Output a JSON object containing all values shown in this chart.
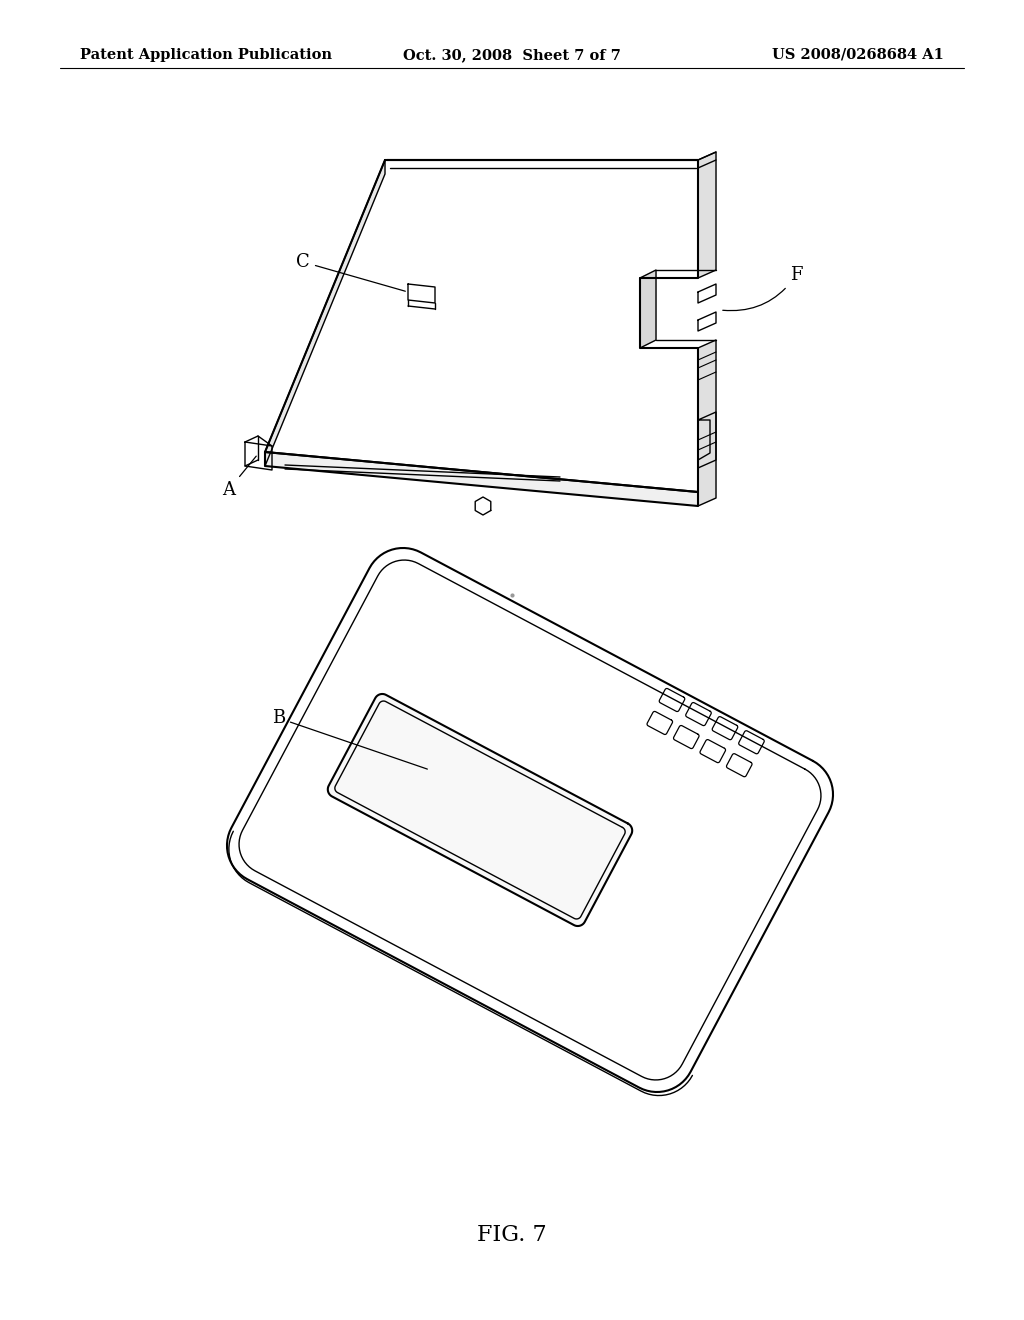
{
  "background_color": "#ffffff",
  "header_left": "Patent Application Publication",
  "header_mid": "Oct. 30, 2008  Sheet 7 of 7",
  "header_right": "US 2008/0268684 A1",
  "figure_label": "FIG. 7",
  "line_color": "#000000",
  "header_fontsize": 10.5,
  "figure_label_fontsize": 16
}
